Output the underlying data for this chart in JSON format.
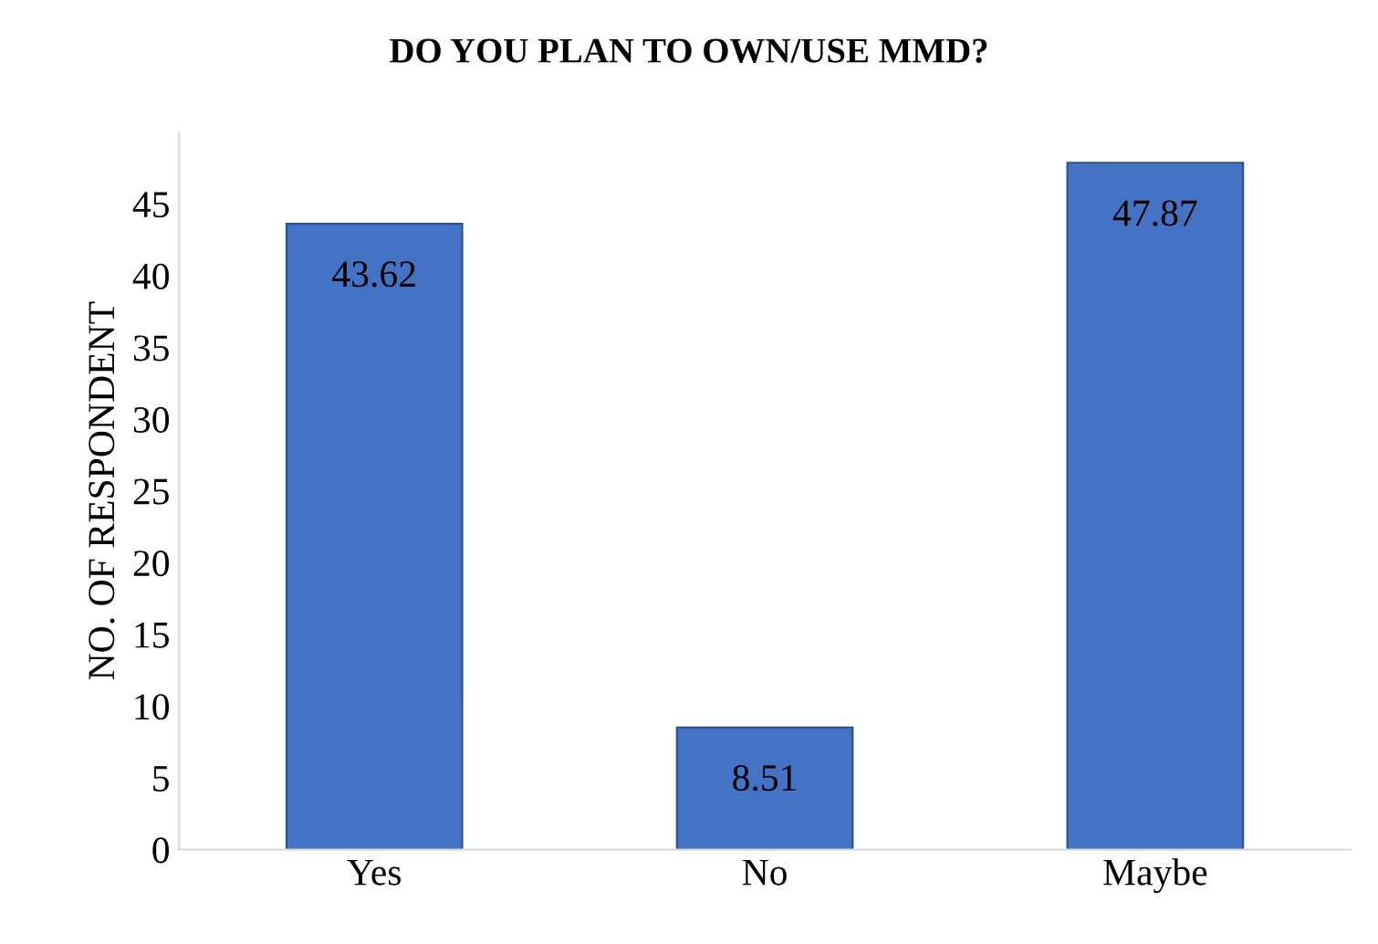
{
  "chart_data": {
    "type": "bar",
    "title": "DO YOU PLAN TO OWN/USE MMD?",
    "ylabel": "NO. OF RESPONDENT",
    "categories": [
      "Yes",
      "No",
      "Maybe"
    ],
    "values": [
      43.62,
      8.51,
      47.87
    ],
    "color": "#4472c4",
    "ylim": [
      0,
      50
    ],
    "yticks": [
      0,
      5,
      10,
      15,
      20,
      25,
      30,
      35,
      40,
      45
    ],
    "grid": false,
    "data_labels": true
  }
}
